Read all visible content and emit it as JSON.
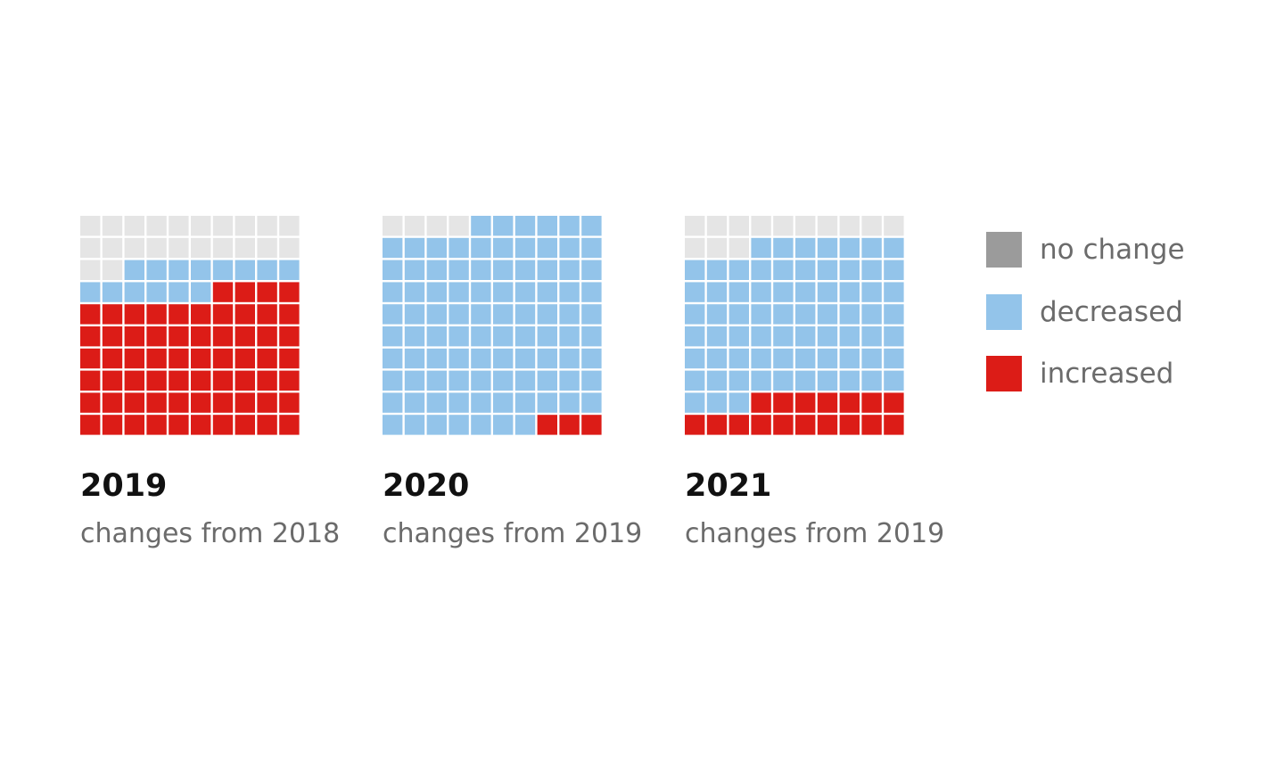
{
  "chart_data": [
    {
      "type": "waffle",
      "title": "2019",
      "subtitle": "changes from 2018",
      "total": 100,
      "counts": {
        "no_change": 22,
        "decreased": 14,
        "increased": 64
      }
    },
    {
      "type": "waffle",
      "title": "2020",
      "subtitle": "changes from 2019",
      "total": 100,
      "counts": {
        "no_change": 4,
        "decreased": 93,
        "increased": 3
      }
    },
    {
      "type": "waffle",
      "title": "2021",
      "subtitle": "changes from 2019",
      "total": 100,
      "counts": {
        "no_change": 13,
        "decreased": 70,
        "increased": 17
      }
    }
  ],
  "legend": [
    {
      "key": "no_change",
      "label": "no change",
      "color": "#9b9b9b"
    },
    {
      "key": "decreased",
      "label": "decreased",
      "color": "#93c4ea"
    },
    {
      "key": "increased",
      "label": "increased",
      "color": "#dc1c17"
    }
  ],
  "colors": {
    "no_change_cell": "#e5e5e5",
    "decreased_cell": "#93c4ea",
    "increased_cell": "#dc1c17"
  }
}
